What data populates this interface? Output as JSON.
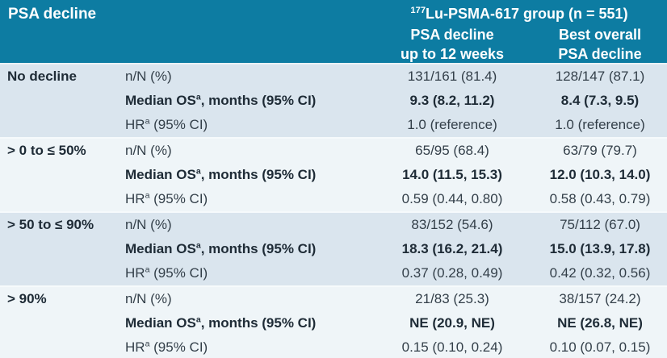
{
  "table": {
    "corner_title": "PSA decline",
    "group_header": {
      "sup": "177",
      "text": "Lu-PSMA-617 group (n = 551)"
    },
    "columns": [
      {
        "line1": "PSA decline",
        "line2": "up to 12 weeks"
      },
      {
        "line1": "Best overall",
        "line2": "PSA decline"
      }
    ],
    "groups": [
      {
        "category": "No decline",
        "rows": [
          {
            "label": "n/N (%)",
            "sup": "",
            "suffix": "",
            "v1": "131/161 (81.4)",
            "v2": "128/147 (87.1)"
          },
          {
            "label": "Median OS",
            "sup": "a",
            "suffix": ", months (95% CI)",
            "v1": "9.3 (8.2, 11.2)",
            "v2": "8.4 (7.3, 9.5)"
          },
          {
            "label": "HR",
            "sup": "a",
            "suffix": " (95% CI)",
            "v1": "1.0 (reference)",
            "v2": "1.0 (reference)"
          }
        ]
      },
      {
        "category": "> 0 to ≤ 50%",
        "rows": [
          {
            "label": "n/N (%)",
            "sup": "",
            "suffix": "",
            "v1": "65/95 (68.4)",
            "v2": "63/79 (79.7)"
          },
          {
            "label": "Median OS",
            "sup": "a",
            "suffix": ", months (95% CI)",
            "v1": "14.0 (11.5, 15.3)",
            "v2": "12.0 (10.3, 14.0)"
          },
          {
            "label": "HR",
            "sup": "a",
            "suffix": " (95% CI)",
            "v1": "0.59 (0.44, 0.80)",
            "v2": "0.58 (0.43, 0.79)"
          }
        ]
      },
      {
        "category": "> 50 to ≤ 90%",
        "rows": [
          {
            "label": "n/N (%)",
            "sup": "",
            "suffix": "",
            "v1": "83/152 (54.6)",
            "v2": "75/112 (67.0)"
          },
          {
            "label": "Median OS",
            "sup": "a",
            "suffix": ", months (95% CI)",
            "v1": "18.3 (16.2, 21.4)",
            "v2": "15.0 (13.9, 17.8)"
          },
          {
            "label": "HR",
            "sup": "a",
            "suffix": " (95% CI)",
            "v1": "0.37 (0.28, 0.49)",
            "v2": "0.42 (0.32, 0.56)"
          }
        ]
      },
      {
        "category": "> 90%",
        "rows": [
          {
            "label": "n/N (%)",
            "sup": "",
            "suffix": "",
            "v1": "21/83 (25.3)",
            "v2": "38/157 (24.2)"
          },
          {
            "label": "Median OS",
            "sup": "a",
            "suffix": ", months (95% CI)",
            "v1": "NE (20.9, NE)",
            "v2": "NE (26.8, NE)"
          },
          {
            "label": "HR",
            "sup": "a",
            "suffix": " (95% CI)",
            "v1": "0.15 (0.10, 0.24)",
            "v2": "0.10 (0.07, 0.15)"
          }
        ]
      }
    ],
    "colors": {
      "header_bg": "#0d7ca2",
      "band_dark": "#dae5ee",
      "band_light": "#eff5f8",
      "text": "#333f49",
      "text_bold": "#1e2b36",
      "header_text": "#ffffff"
    }
  }
}
